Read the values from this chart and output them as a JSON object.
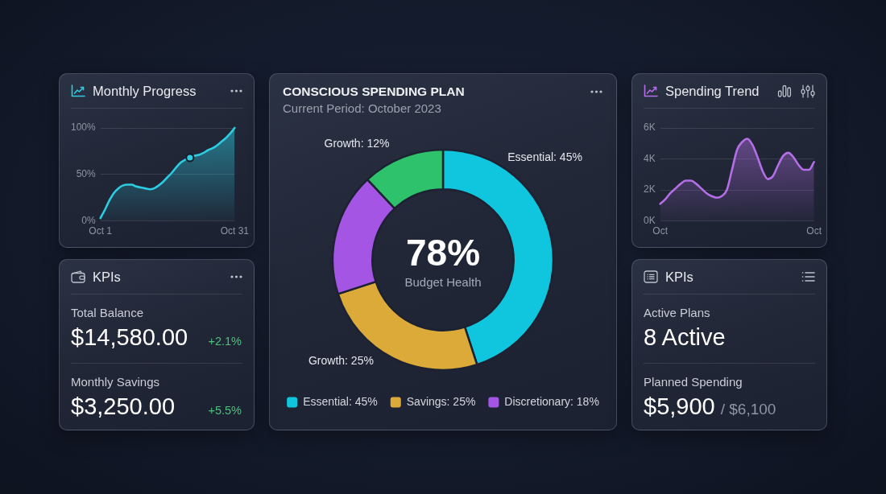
{
  "chart_data": [
    {
      "type": "area",
      "title": "Monthly Progress",
      "categories": [
        "Oct 1",
        null,
        null,
        null,
        null,
        null,
        null,
        null,
        null,
        null,
        null,
        null,
        null,
        null,
        null,
        null,
        null,
        null,
        null,
        null,
        null,
        null,
        null,
        null,
        null,
        null,
        null,
        null,
        null,
        null,
        "Oct 31"
      ],
      "ylim": [
        0,
        100
      ],
      "yticks": [
        {
          "value": 0,
          "label": "0%"
        },
        {
          "value": 50,
          "label": "50%"
        },
        {
          "value": 100,
          "label": "100%"
        }
      ],
      "grid": "y",
      "series": [
        {
          "color": "#2ccde3",
          "values": [
            3,
            12,
            22,
            30,
            35,
            38,
            39,
            39,
            37,
            36,
            35,
            34,
            35,
            38,
            42,
            47,
            52,
            58,
            63,
            66,
            68,
            70,
            71,
            73,
            76,
            78,
            81,
            85,
            89,
            94,
            100
          ]
        },
        {
          "type": "scatter",
          "color": "#2ccde3",
          "marker": "circle",
          "values": [
            null,
            null,
            null,
            null,
            null,
            null,
            null,
            null,
            null,
            null,
            null,
            null,
            null,
            null,
            null,
            null,
            null,
            null,
            null,
            null,
            68,
            null,
            null,
            null,
            null,
            null,
            null,
            null,
            null,
            null,
            null
          ]
        }
      ]
    },
    {
      "type": "donut",
      "title": "CONSCIOUS SPENDING PLAN",
      "subtitle": "Current Period: October 2023",
      "categories": [
        "Essential: 45%",
        "Savings: 25%",
        "Discretionary: 18%",
        null
      ],
      "values": [
        45,
        25,
        18,
        12
      ],
      "colors": [
        "#0fc6de",
        "#dcaa38",
        "#a455e3",
        "#2ec26c"
      ],
      "value_labels": [
        "Essential: 45%",
        "Growth: 25%",
        null,
        "Growth: 12%"
      ],
      "legend": "bottom",
      "annotations": [
        "78%",
        "Budget Health"
      ]
    },
    {
      "type": "area",
      "title": "Spending Trend",
      "categories": [
        "Oct",
        null,
        null,
        null,
        null,
        null,
        null,
        null,
        null,
        null,
        null,
        null,
        null,
        null,
        null,
        null,
        null,
        null,
        null,
        null,
        null,
        null,
        null,
        null,
        null,
        null,
        null,
        null,
        null,
        null,
        "Oct"
      ],
      "ylim": [
        0,
        6
      ],
      "yticks": [
        {
          "value": 0,
          "label": "0K"
        },
        {
          "value": 2,
          "label": "2K"
        },
        {
          "value": 4,
          "label": "4K"
        },
        {
          "value": 6,
          "label": "6K"
        }
      ],
      "grid": "y",
      "series": [
        {
          "color": "#b46ee6",
          "values": [
            1.1,
            1.4,
            1.8,
            2.1,
            2.4,
            2.6,
            2.6,
            2.4,
            2.1,
            1.8,
            1.6,
            1.5,
            1.6,
            2.0,
            3.3,
            4.6,
            5.1,
            5.3,
            4.9,
            4.1,
            3.2,
            2.7,
            2.9,
            3.6,
            4.2,
            4.4,
            4.1,
            3.6,
            3.3,
            3.3,
            3.8
          ]
        }
      ]
    },
    {
      "type": "other",
      "title": "KPIs",
      "annotations": [
        "Total Balance",
        "$14,580.00",
        "+2.1%",
        "Monthly Savings",
        "$3,250.00",
        "+5.5%"
      ]
    },
    {
      "type": "other",
      "title": "KPIs",
      "annotations": [
        "Active Plans",
        "8 Active",
        "Planned Spending",
        "$5,900",
        "/ $6,100"
      ]
    }
  ]
}
